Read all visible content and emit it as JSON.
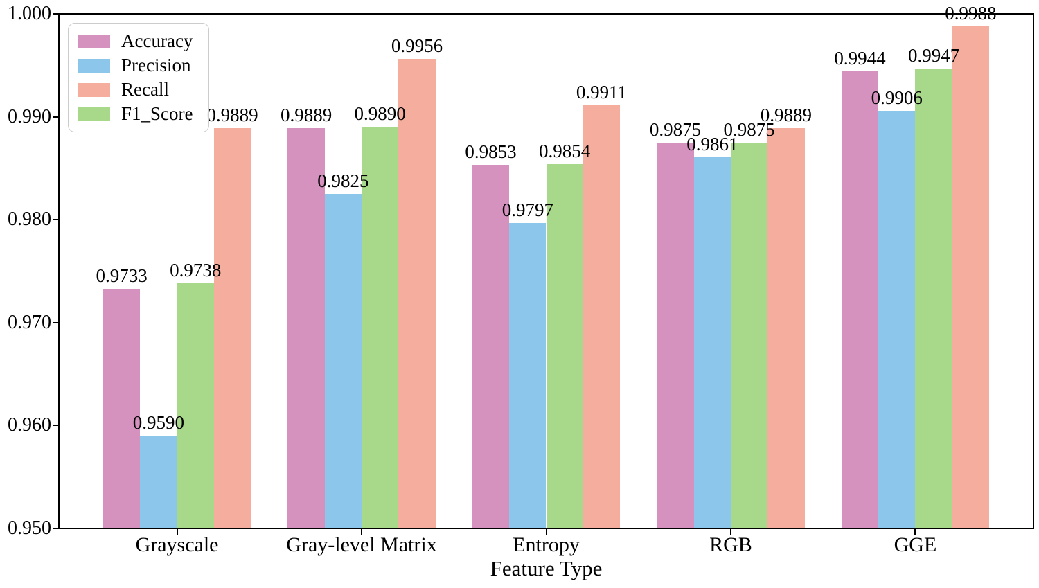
{
  "chart_data": {
    "type": "bar",
    "title": "",
    "xlabel": "Feature Type",
    "ylabel": "",
    "categories": [
      "Grayscale",
      "Gray-level Matrix",
      "Entropy",
      "RGB",
      "GGE"
    ],
    "series": [
      {
        "name": "Accuracy",
        "color": "#D592BF",
        "values": [
          0.9733,
          0.9889,
          0.9853,
          0.9875,
          0.9944
        ]
      },
      {
        "name": "Precision",
        "color": "#8DC6EB",
        "values": [
          0.959,
          0.9825,
          0.9797,
          0.9861,
          0.9906
        ]
      },
      {
        "name": "F1_Score",
        "color": "#A8D88A",
        "values": [
          0.9738,
          0.989,
          0.9854,
          0.9875,
          0.9947
        ]
      },
      {
        "name": "Recall",
        "color": "#F5AD9D",
        "values": [
          0.9889,
          0.9956,
          0.9911,
          0.9889,
          0.9988
        ]
      }
    ],
    "legend": {
      "position": "upper left",
      "entries": [
        {
          "label": "Accuracy",
          "color": "#D592BF"
        },
        {
          "label": "Precision",
          "color": "#8DC6EB"
        },
        {
          "label": "Recall",
          "color": "#F5AD9D"
        },
        {
          "label": "F1_Score",
          "color": "#A8D88A"
        }
      ]
    },
    "ylim": [
      0.95,
      1.0
    ],
    "ytick_labels": [
      "1.000",
      "0.990",
      "0.980",
      "0.970",
      "0.960",
      "0.950"
    ],
    "value_label_decimals": 4,
    "grid": false,
    "frame": "full-box"
  }
}
